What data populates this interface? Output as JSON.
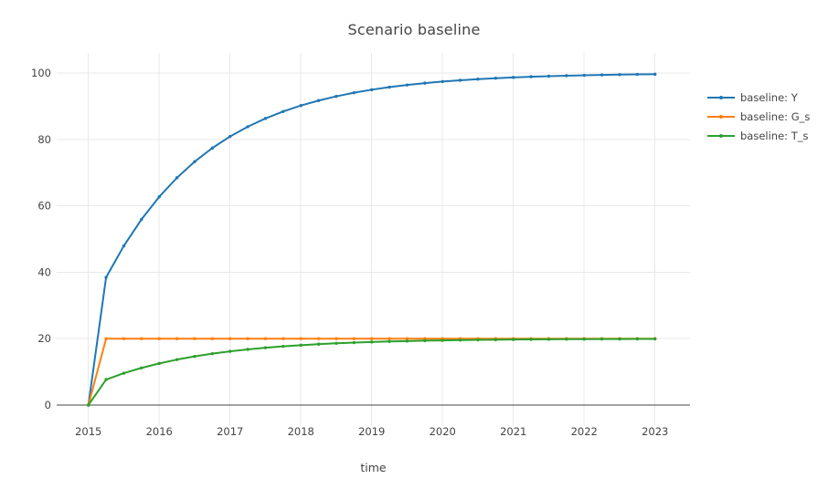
{
  "chart_data": {
    "type": "line",
    "title": "Scenario baseline",
    "xlabel": "time",
    "ylabel": "",
    "grid": true,
    "legend_position": "right",
    "marker": "circle",
    "x_ticks": [
      2015,
      2016,
      2017,
      2018,
      2019,
      2020,
      2021,
      2022,
      2023
    ],
    "y_ticks": [
      0,
      20,
      40,
      60,
      80,
      100
    ],
    "x_range": [
      2014.552,
      2023.494
    ],
    "y_range": [
      -6.32,
      106.06
    ],
    "x": [
      2015.0,
      2015.25,
      2015.5,
      2015.75,
      2016.0,
      2016.25,
      2016.5,
      2016.75,
      2017.0,
      2017.25,
      2017.5,
      2017.75,
      2018.0,
      2018.25,
      2018.5,
      2018.75,
      2019.0,
      2019.25,
      2019.5,
      2019.75,
      2020.0,
      2020.25,
      2020.5,
      2020.75,
      2021.0,
      2021.25,
      2021.5,
      2021.75,
      2022.0,
      2022.25,
      2022.5,
      2022.75,
      2023.0
    ],
    "series": [
      {
        "name": "baseline: Y",
        "color": "#1f77b4",
        "values": [
          0,
          38.46,
          47.93,
          55.94,
          62.72,
          68.45,
          73.31,
          77.41,
          80.89,
          83.83,
          86.32,
          88.42,
          90.2,
          91.71,
          92.99,
          94.07,
          94.98,
          95.75,
          96.4,
          96.96,
          97.43,
          97.82,
          98.16,
          98.44,
          98.68,
          98.88,
          99.06,
          99.2,
          99.32,
          99.43,
          99.52,
          99.59,
          99.65
        ]
      },
      {
        "name": "baseline: G_s",
        "color": "#ff7f0e",
        "values": [
          0,
          20,
          20,
          20,
          20,
          20,
          20,
          20,
          20,
          20,
          20,
          20,
          20,
          20,
          20,
          20,
          20,
          20,
          20,
          20,
          20,
          20,
          20,
          20,
          20,
          20,
          20,
          20,
          20,
          20,
          20,
          20,
          20
        ]
      },
      {
        "name": "baseline: T_s",
        "color": "#2ca02c",
        "values": [
          0,
          7.69,
          9.59,
          11.19,
          12.54,
          13.69,
          14.66,
          15.48,
          16.18,
          16.77,
          17.26,
          17.68,
          18.04,
          18.34,
          18.6,
          18.81,
          19.0,
          19.15,
          19.28,
          19.39,
          19.48,
          19.56,
          19.63,
          19.69,
          19.74,
          19.78,
          19.81,
          19.84,
          19.86,
          19.89,
          19.9,
          19.92,
          19.93
        ]
      }
    ],
    "colors": {
      "background": "#ffffff",
      "grid": "#e9e9e9",
      "zeroline": "#444444",
      "text": "#444444"
    }
  }
}
